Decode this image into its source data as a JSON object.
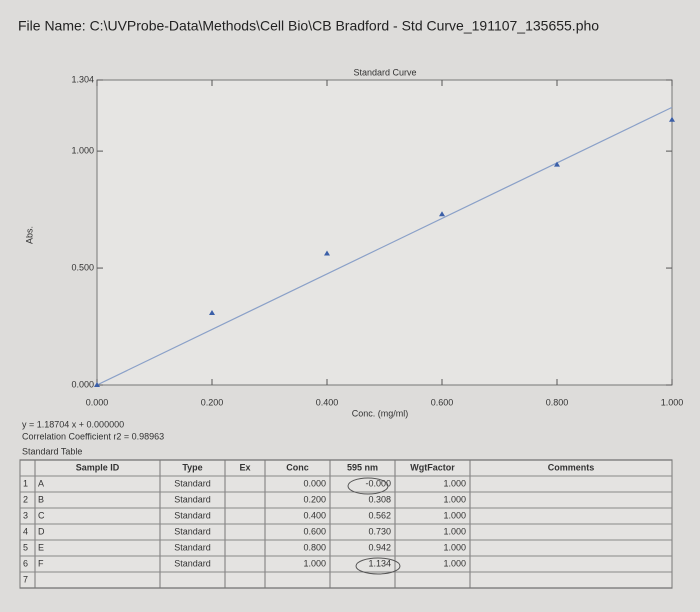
{
  "file_name": "File Name:  C:\\UVProbe-Data\\Methods\\Cell Bio\\CB Bradford - Std Curve_191107_135655.pho",
  "chart_data": {
    "type": "scatter",
    "title": "Standard Curve",
    "y_label": "Abs.",
    "x_label": "Conc. (mg/ml)",
    "x": [
      0.0,
      0.2,
      0.4,
      0.6,
      0.8,
      1.0
    ],
    "series": [
      {
        "name": "Standard",
        "color": "#3b5fa8",
        "values": [
          0.0,
          0.308,
          0.562,
          0.73,
          0.942,
          1.134
        ]
      }
    ],
    "xlim": [
      0,
      1.0
    ],
    "ylim": [
      0,
      1.304
    ],
    "xticks": [
      {
        "value": 0,
        "label": "0.000"
      },
      {
        "value": 0.2,
        "label": "0.200"
      },
      {
        "value": 0.4,
        "label": "0.400"
      },
      {
        "value": 0.6,
        "label": "0.600"
      },
      {
        "value": 0.8,
        "label": "0.800"
      },
      {
        "value": 1.0,
        "label": "1.000"
      }
    ],
    "yticks": [
      {
        "value": 0,
        "label": "0.000"
      },
      {
        "value": 0.5,
        "label": "0.500"
      },
      {
        "value": 1.0,
        "label": "1.000"
      },
      {
        "value": 1.304,
        "label": "1.304"
      }
    ],
    "fit": {
      "text": "y = 1.18704 x + 0.000000",
      "slope": 1.18704,
      "intercept": 0,
      "color": "#8aa0c8"
    },
    "correlation": "Correlation Coefficient r2 = 0.98963"
  },
  "table": {
    "title": "Standard Table",
    "headers": [
      "Sample ID",
      "Type",
      "Ex",
      "Conc",
      "595 nm",
      "WgtFactor",
      "Comments"
    ],
    "rows": [
      {
        "num": "1",
        "sample_id": "A",
        "type": "Standard",
        "conc": "0.000",
        "abs": "-0.000",
        "wgt": "1.000"
      },
      {
        "num": "2",
        "sample_id": "B",
        "type": "Standard",
        "conc": "0.200",
        "abs": "0.308",
        "wgt": "1.000"
      },
      {
        "num": "3",
        "sample_id": "C",
        "type": "Standard",
        "conc": "0.400",
        "abs": "0.562",
        "wgt": "1.000"
      },
      {
        "num": "4",
        "sample_id": "D",
        "type": "Standard",
        "conc": "0.600",
        "abs": "0.730",
        "wgt": "1.000"
      },
      {
        "num": "5",
        "sample_id": "E",
        "type": "Standard",
        "conc": "0.800",
        "abs": "0.942",
        "wgt": "1.000"
      },
      {
        "num": "6",
        "sample_id": "F",
        "type": "Standard",
        "conc": "1.000",
        "abs": "1.134",
        "wgt": "1.000"
      },
      {
        "num": "7"
      }
    ]
  }
}
